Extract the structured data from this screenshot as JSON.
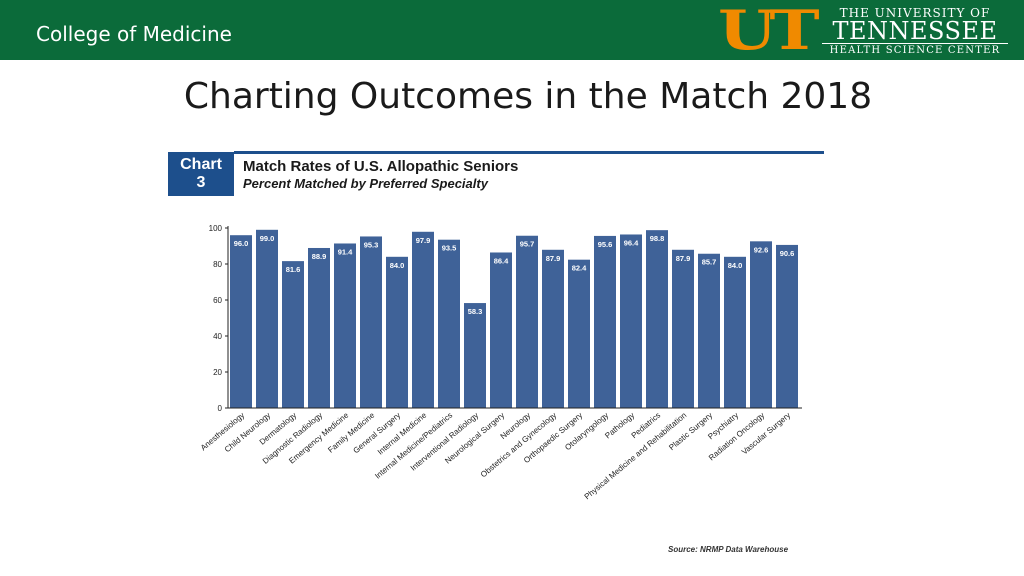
{
  "header": {
    "college": "College of Medicine",
    "logo": {
      "monogram": "UT",
      "line1": "THE UNIVERSITY OF",
      "line2": "TENNESSEE",
      "line3": "HEALTH SCIENCE CENTER"
    }
  },
  "page_title": "Charting Outcomes in the Match 2018",
  "badge": {
    "line1": "Chart",
    "line2": "3"
  },
  "source": "Source: NRMP Data Warehouse",
  "colors": {
    "header_green": "#0b6b3a",
    "brand_orange": "#f08a00",
    "bar_blue": "#3f6298",
    "badge_blue": "#1d4f8c"
  },
  "chart_data": {
    "type": "bar",
    "title": "Match Rates of U.S. Allopathic Seniors",
    "subtitle": "Percent Matched by Preferred Specialty",
    "xlabel": "",
    "ylabel": "",
    "ylim": [
      0,
      100
    ],
    "yticks": [
      0,
      20,
      40,
      60,
      80,
      100
    ],
    "grid": false,
    "categories": [
      "Anesthesiology",
      "Child Neurology",
      "Dermatology",
      "Diagnostic Radiology",
      "Emergency Medicine",
      "Family Medicine",
      "General Surgery",
      "Internal Medicine",
      "Internal Medicine/Pediatrics",
      "Interventional Radiology",
      "Neurological Surgery",
      "Neurology",
      "Obstetrics and Gynecology",
      "Orthopaedic Surgery",
      "Otolaryngology",
      "Pathology",
      "Pediatrics",
      "Physical Medicine and Rehabilitation",
      "Plastic Surgery",
      "Psychiatry",
      "Radiation Oncology",
      "Vascular Surgery"
    ],
    "values": [
      96.0,
      99.0,
      81.6,
      88.9,
      91.4,
      95.3,
      84.0,
      97.9,
      93.5,
      58.3,
      86.4,
      95.7,
      87.9,
      82.4,
      95.6,
      96.4,
      98.8,
      87.9,
      85.7,
      84.0,
      92.6,
      90.6
    ],
    "data_labels": [
      "96.0",
      "99.0",
      "81.6",
      "88.9",
      "91.4",
      "95.3",
      "84.0",
      "97.9",
      "93.5",
      "58.3",
      "86.4",
      "95.7",
      "87.9",
      "82.4",
      "95.6",
      "96.4",
      "98.8",
      "87.9",
      "85.7",
      "84.0",
      "92.6",
      "90.6"
    ]
  }
}
